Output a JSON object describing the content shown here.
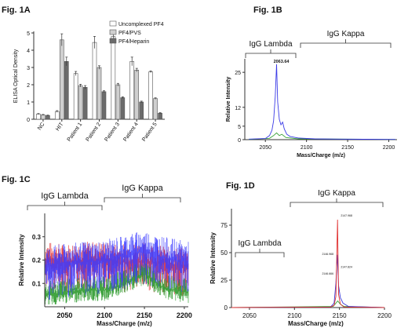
{
  "chart_data": [
    {
      "id": "1A",
      "type": "bar",
      "panel_label": "Fig. 1A",
      "title": "",
      "ylabel": "ELISA Optical Density",
      "xlabel": "",
      "ylim": [
        0,
        5
      ],
      "yticks": [
        0,
        1,
        2,
        3,
        4,
        5
      ],
      "grid": false,
      "legend_position": "top-right",
      "categories": [
        "NC",
        "HIT",
        "Patient 1",
        "Patient 2",
        "Patient 3",
        "Patient 4",
        "Patient 5"
      ],
      "series": [
        {
          "name": "Uncomplexed PF4",
          "color": "#ffffff",
          "values": [
            0.3,
            0.45,
            2.65,
            4.45,
            4.8,
            3.35,
            2.75
          ],
          "errors": [
            0.03,
            0.05,
            0.12,
            0.35,
            0.12,
            0.25,
            0.05
          ]
        },
        {
          "name": "PF4/PVS",
          "color": "#cfcfcf",
          "values": [
            0.25,
            4.6,
            1.95,
            3.0,
            2.0,
            2.85,
            1.2
          ],
          "errors": [
            0.03,
            0.35,
            0.08,
            0.1,
            0.08,
            0.1,
            0.04
          ]
        },
        {
          "name": "PF4/Heparin",
          "color": "#6b6b6b",
          "values": [
            0.22,
            3.35,
            1.85,
            1.6,
            1.25,
            1.0,
            0.35
          ],
          "errors": [
            0.02,
            0.25,
            0.1,
            0.05,
            0.05,
            0.05,
            0.03
          ]
        }
      ]
    },
    {
      "id": "1B",
      "type": "line",
      "panel_label": "Fig. 1B",
      "xlabel": "Mass/Charge (m/z)",
      "ylabel": "Relative Intensity",
      "xlim": [
        2025,
        2210
      ],
      "ylim": [
        0,
        30
      ],
      "xticks": [
        2050,
        2100,
        2150,
        2200
      ],
      "yticks": [
        0,
        5,
        12,
        25
      ],
      "bracket_labels": [
        "IgG Lambda",
        "IgG Kappa"
      ],
      "peak_annotation": {
        "text": "2063.64",
        "x": 2063.64
      },
      "series": [
        {
          "color": "#3a3ae6",
          "x": [
            2030,
            2050,
            2055,
            2058,
            2060,
            2062,
            2063.6,
            2065,
            2067,
            2069,
            2071,
            2073,
            2076,
            2080,
            2090,
            2110,
            2140,
            2170,
            2200,
            2208
          ],
          "y": [
            0.2,
            0.4,
            1.5,
            3.5,
            7.0,
            16.0,
            28.0,
            14.0,
            7.5,
            5.5,
            6.5,
            4.0,
            2.0,
            1.2,
            0.6,
            0.3,
            0.2,
            0.15,
            0.1,
            0.1
          ]
        },
        {
          "color": "#3ca33c",
          "x": [
            2030,
            2055,
            2060,
            2063.6,
            2067,
            2070,
            2075,
            2090,
            2208
          ],
          "y": [
            0.1,
            0.5,
            1.5,
            2.5,
            1.5,
            2.0,
            0.8,
            0.3,
            0.1
          ]
        }
      ]
    },
    {
      "id": "1C",
      "type": "line",
      "panel_label": "Fig. 1C",
      "xlabel": "Mass/Charge (m/z)",
      "ylabel": "Relative Intensity",
      "xlim": [
        2025,
        2205
      ],
      "ylim": [
        0,
        0.4
      ],
      "xticks": [
        2050,
        2100,
        2150,
        2200
      ],
      "yticks": [
        0.1,
        0.2,
        0.3
      ],
      "bracket_labels": [
        "IgG Lambda",
        "IgG Kappa"
      ],
      "series": [
        {
          "color": "#3b3bff",
          "x": [
            2025,
            2050,
            2075,
            2100,
            2125,
            2150,
            2175,
            2205
          ],
          "y": [
            0.17,
            0.18,
            0.19,
            0.195,
            0.22,
            0.24,
            0.21,
            0.19
          ]
        },
        {
          "color": "#e53030",
          "x": [
            2025,
            2050,
            2075,
            2100,
            2125,
            2150,
            2175,
            2205
          ],
          "y": [
            0.2,
            0.19,
            0.2,
            0.2,
            0.19,
            0.2,
            0.18,
            0.17
          ]
        },
        {
          "color": "#2e9a2e",
          "x": [
            2025,
            2050,
            2075,
            2100,
            2125,
            2150,
            2175,
            2205
          ],
          "y": [
            0.05,
            0.06,
            0.07,
            0.07,
            0.1,
            0.14,
            0.08,
            0.06
          ]
        }
      ]
    },
    {
      "id": "1D",
      "type": "line",
      "panel_label": "Fig. 1D",
      "xlabel": "Mass/Charge (m/z)",
      "ylabel": "Relative Intensity",
      "xlim": [
        2030,
        2200
      ],
      "ylim": [
        0,
        90
      ],
      "xticks": [
        2050,
        2100,
        2150,
        2200
      ],
      "yticks": [
        0,
        25,
        50,
        75
      ],
      "bracket_labels": [
        "IgG Lambda",
        "IgG Kappa"
      ],
      "peak_annotations": [
        "2147.968",
        "2146.968",
        "2147.824",
        "2146.666"
      ],
      "series": [
        {
          "color": "#e03030",
          "x": [
            2030,
            2140,
            2144,
            2146,
            2147.9,
            2149,
            2151,
            2155,
            2200
          ],
          "y": [
            0,
            0.5,
            2,
            10,
            80,
            12,
            3,
            0.5,
            0
          ]
        },
        {
          "color": "#3a3ad8",
          "x": [
            2030,
            2140,
            2144,
            2146,
            2147.5,
            2149,
            2151,
            2154,
            2160,
            2200
          ],
          "y": [
            0,
            0.5,
            4,
            22,
            48,
            20,
            9,
            4,
            1,
            0
          ]
        },
        {
          "color": "#3ca33c",
          "x": [
            2030,
            2143,
            2146,
            2148,
            2151,
            2155,
            2200
          ],
          "y": [
            0,
            1,
            4,
            6,
            3,
            1,
            0
          ]
        }
      ]
    }
  ]
}
